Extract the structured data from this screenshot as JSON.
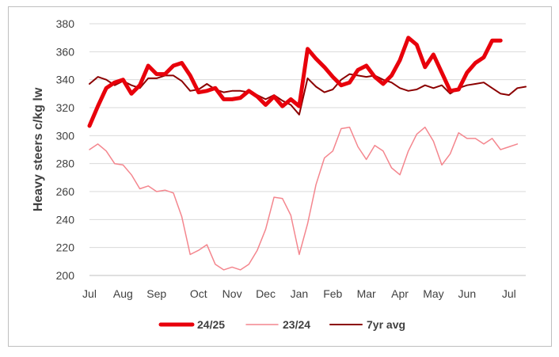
{
  "chart_data": {
    "type": "line",
    "ylabel": "Heavy steers c/kg lw",
    "ylim": [
      200,
      380
    ],
    "yticks": [
      200,
      220,
      240,
      260,
      280,
      300,
      320,
      340,
      360,
      380
    ],
    "xtick_labels": [
      "Jul",
      "Aug",
      "Sep",
      "Oct",
      "Nov",
      "Dec",
      "Jan",
      "Feb",
      "Mar",
      "Apr",
      "May",
      "Jun",
      "Jul"
    ],
    "xtick_weeks": [
      0,
      4,
      8,
      13,
      17,
      21,
      25,
      29,
      33,
      37,
      41,
      45,
      50
    ],
    "grid": "horizontal",
    "legend_position": "bottom",
    "series": [
      {
        "name": "24/25",
        "color": "#e8000b",
        "values": [
          307,
          321,
          334,
          338,
          340,
          330,
          336,
          350,
          344,
          344,
          350,
          352,
          343,
          331,
          332,
          334,
          326,
          326,
          327,
          332,
          328,
          322,
          328,
          321,
          326,
          321,
          362,
          355,
          349,
          342,
          336,
          338,
          347,
          350,
          342,
          337,
          343,
          354,
          370,
          365,
          349,
          358,
          345,
          332,
          333,
          345,
          352,
          356,
          368,
          368
        ]
      },
      {
        "name": "23/24",
        "color": "#f4868e",
        "values": [
          290,
          294,
          289,
          280,
          279,
          272,
          262,
          264,
          260,
          261,
          259,
          242,
          215,
          218,
          222,
          208,
          204,
          206,
          204,
          208,
          218,
          233,
          256,
          255,
          243,
          215,
          237,
          265,
          284,
          289,
          305,
          306,
          292,
          283,
          293,
          289,
          277,
          272,
          289,
          301,
          306,
          296,
          279,
          287,
          302,
          298,
          298,
          294,
          298,
          290,
          292,
          294
        ]
      },
      {
        "name": "7yr avg",
        "color": "#8b0000",
        "values": [
          337,
          342,
          340,
          336,
          339,
          336,
          334,
          341,
          341,
          343,
          343,
          339,
          332,
          333,
          337,
          333,
          331,
          332,
          332,
          331,
          329,
          326,
          329,
          325,
          322,
          315,
          341,
          335,
          331,
          333,
          340,
          344,
          343,
          342,
          343,
          340,
          338,
          334,
          332,
          333,
          336,
          334,
          336,
          330,
          334,
          336,
          337,
          338,
          334,
          330,
          329,
          334,
          335
        ]
      }
    ]
  }
}
